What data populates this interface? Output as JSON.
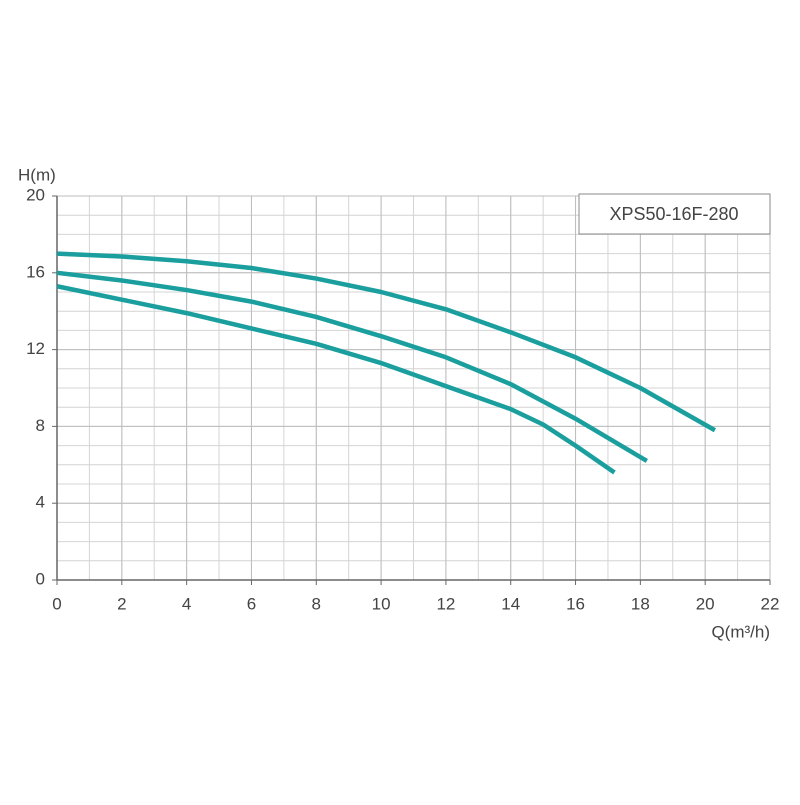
{
  "chart_data": {
    "type": "line",
    "legend_title": "XPS50-16F-280",
    "xlabel": "Q(m³/h)",
    "ylabel": "H(m)",
    "xlim": [
      0,
      22
    ],
    "xticks": [
      0,
      2,
      4,
      6,
      8,
      10,
      12,
      14,
      16,
      18,
      20,
      22
    ],
    "ylim": [
      0,
      20
    ],
    "yticks": [
      0,
      4,
      8,
      12,
      16,
      20
    ],
    "grid": true,
    "minor_grid_step": 1,
    "series": [
      {
        "color": "#1a9e9e",
        "x": [
          0,
          2,
          4,
          6,
          8,
          10,
          12,
          14,
          16,
          18,
          20.3
        ],
        "values": [
          17.0,
          16.85,
          16.6,
          16.25,
          15.7,
          15.0,
          14.1,
          12.9,
          11.6,
          10.0,
          7.8
        ]
      },
      {
        "color": "#1a9e9e",
        "x": [
          0,
          2,
          4,
          6,
          8,
          10,
          12,
          14,
          16,
          18.2
        ],
        "values": [
          16.0,
          15.6,
          15.1,
          14.5,
          13.7,
          12.7,
          11.6,
          10.2,
          8.4,
          6.2
        ]
      },
      {
        "color": "#1a9e9e",
        "x": [
          0,
          2,
          4,
          6,
          8,
          10,
          12,
          14,
          15,
          16,
          17.2
        ],
        "values": [
          15.3,
          14.6,
          13.9,
          13.1,
          12.3,
          11.3,
          10.1,
          8.9,
          8.1,
          7.0,
          5.6
        ]
      }
    ]
  }
}
